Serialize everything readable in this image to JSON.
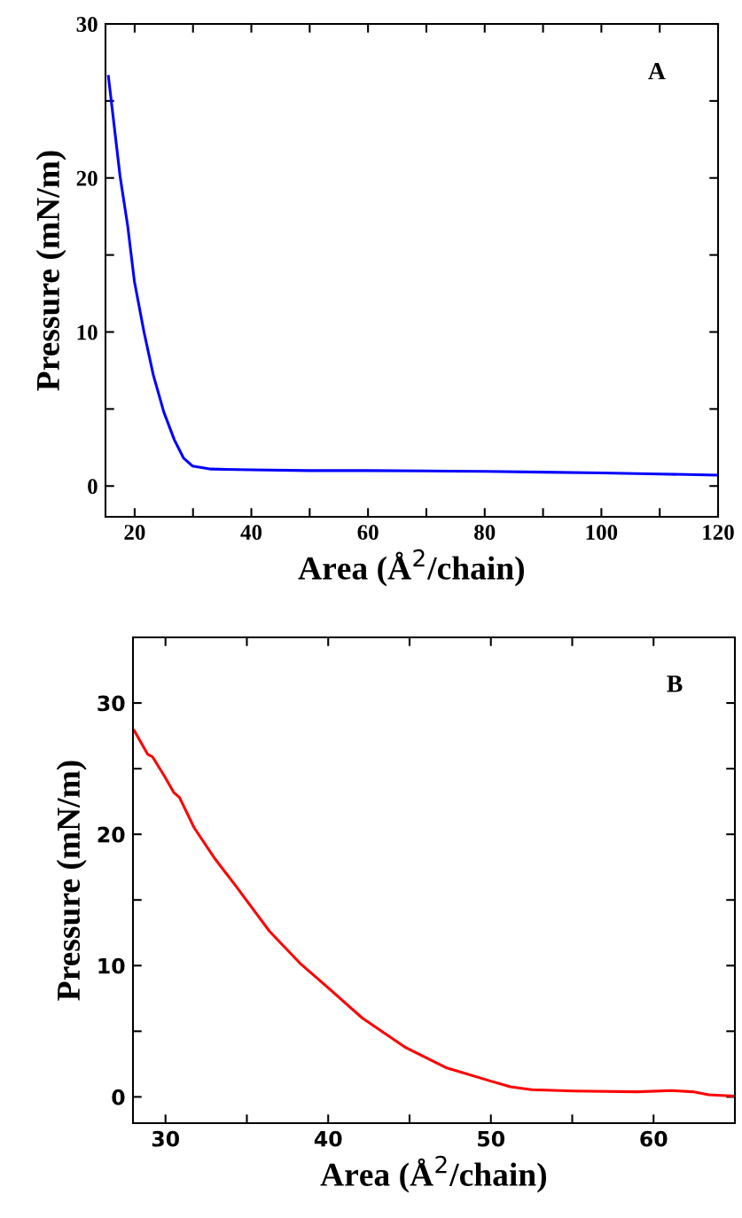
{
  "chart_data": [
    {
      "type": "line",
      "xlabel": "Area (Å$^{2}$/chain)",
      "ylabel": "Pressure (mN/m)",
      "annotations": [
        "A"
      ],
      "xlim": [
        15,
        120
      ],
      "ylim": [
        -2,
        30
      ],
      "xticks": [
        20,
        {
          "value": 30,
          "label": null
        },
        40,
        {
          "value": 50,
          "label": null
        },
        60,
        {
          "value": 70,
          "label": null
        },
        80,
        {
          "value": 90,
          "label": null
        },
        100,
        {
          "value": 110,
          "label": null
        },
        120
      ],
      "yticks": [
        0,
        {
          "value": 5,
          "label": null
        },
        10,
        {
          "value": 15,
          "label": null
        },
        20,
        {
          "value": 25,
          "label": null
        },
        30
      ],
      "grid": false,
      "legend": false,
      "series": [
        {
          "color": "#0000ff",
          "x": [
            15.5,
            17.5,
            18.8,
            19.95,
            21.6,
            23.2,
            25.0,
            26.8,
            28.4,
            29.9,
            33.1,
            40,
            50,
            60,
            70,
            80,
            90,
            100,
            110,
            120
          ],
          "values": [
            26.6,
            20.1,
            16.9,
            13.3,
            10.0,
            7.2,
            4.8,
            3.0,
            1.8,
            1.3,
            1.1,
            1.05,
            1.0,
            1.0,
            0.98,
            0.95,
            0.9,
            0.85,
            0.78,
            0.7
          ]
        }
      ]
    },
    {
      "type": "line",
      "xlabel": "Area (Å$^{2}$/chain)",
      "ylabel": "Pressure (mN/m)",
      "annotations": [
        "B"
      ],
      "xlim": [
        28,
        65
      ],
      "ylim": [
        -2,
        35
      ],
      "xticks": [
        30,
        {
          "value": 35,
          "label": null
        },
        40,
        {
          "value": 45,
          "label": null
        },
        50,
        {
          "value": 55,
          "label": null
        },
        60
      ],
      "yticks": [
        0,
        {
          "value": 5,
          "label": null
        },
        10,
        {
          "value": 15,
          "label": null
        },
        20,
        {
          "value": 25,
          "label": null
        },
        30
      ],
      "grid": false,
      "legend": false,
      "series": [
        {
          "color": "#ff0000",
          "x": [
            28.08,
            28.9,
            29.2,
            29.95,
            30.5,
            30.86,
            31.76,
            33.06,
            34.36,
            36.4,
            38.25,
            40.0,
            42.1,
            44.7,
            47.3,
            50.0,
            51.2,
            52.5,
            55.1,
            59.0,
            61.1,
            62.4,
            63.4,
            65.0
          ],
          "values": [
            27.9,
            26.1,
            25.9,
            24.4,
            23.2,
            22.8,
            20.5,
            18.1,
            16.0,
            12.6,
            10.2,
            8.3,
            6.0,
            3.8,
            2.2,
            1.2,
            0.77,
            0.55,
            0.45,
            0.39,
            0.48,
            0.39,
            0.16,
            0.06
          ]
        }
      ]
    }
  ]
}
